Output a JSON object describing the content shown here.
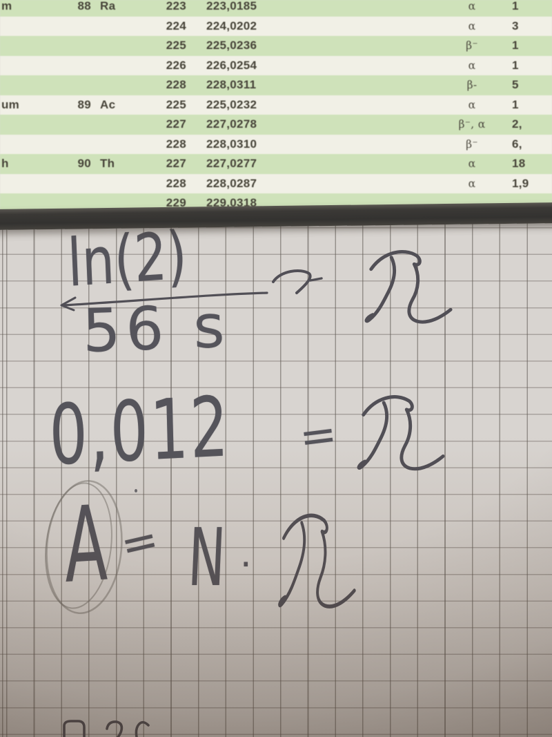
{
  "table": {
    "rows": [
      {
        "name": "m",
        "z": "88",
        "symbol": "Ra",
        "a": "223",
        "mass": "223,0185",
        "decay": "α",
        "halflife": "1"
      },
      {
        "name": "",
        "z": "",
        "symbol": "",
        "a": "224",
        "mass": "224,0202",
        "decay": "α",
        "halflife": "3"
      },
      {
        "name": "",
        "z": "",
        "symbol": "",
        "a": "225",
        "mass": "225,0236",
        "decay": "β⁻",
        "halflife": "1"
      },
      {
        "name": "",
        "z": "",
        "symbol": "",
        "a": "226",
        "mass": "226,0254",
        "decay": "α",
        "halflife": "1"
      },
      {
        "name": "",
        "z": "",
        "symbol": "",
        "a": "228",
        "mass": "228,0311",
        "decay": "β-",
        "halflife": "5"
      },
      {
        "name": "um",
        "z": "89",
        "symbol": "Ac",
        "a": "225",
        "mass": "225,0232",
        "decay": "α",
        "halflife": "1"
      },
      {
        "name": "",
        "z": "",
        "symbol": "",
        "a": "227",
        "mass": "227,0278",
        "decay": "β⁻, α",
        "halflife": "2,"
      },
      {
        "name": "",
        "z": "",
        "symbol": "",
        "a": "228",
        "mass": "228,0310",
        "decay": "β⁻",
        "halflife": "6,"
      },
      {
        "name": "h",
        "z": "90",
        "symbol": "Th",
        "a": "227",
        "mass": "227,0277",
        "decay": "α",
        "halflife": "18"
      },
      {
        "name": "",
        "z": "",
        "symbol": "",
        "a": "228",
        "mass": "228,0287",
        "decay": "α",
        "halflife": "1,9"
      },
      {
        "name": "",
        "z": "",
        "symbol": "",
        "a": "229",
        "mass": "229,0318",
        "decay": "",
        "halflife": ""
      }
    ]
  },
  "handwriting": {
    "eq1": {
      "numerator": "ln(2)",
      "denominator": "56 s",
      "equals": "=",
      "result": "λ"
    },
    "eq2": {
      "value": "0,012",
      "equals": "=",
      "result": "λ"
    },
    "eq3": {
      "lhs": "A",
      "equals": "=",
      "rhs_factor": "N",
      "dot": "·",
      "rhs_lambda": "λ"
    }
  },
  "colors": {
    "stripe_green": "#cfe2ba",
    "stripe_cream": "#f1f0e6",
    "table_text": "#474439",
    "clipboard_edge": "#3b3936",
    "paper": "#d8d4d0",
    "pencil": "#55545b"
  }
}
